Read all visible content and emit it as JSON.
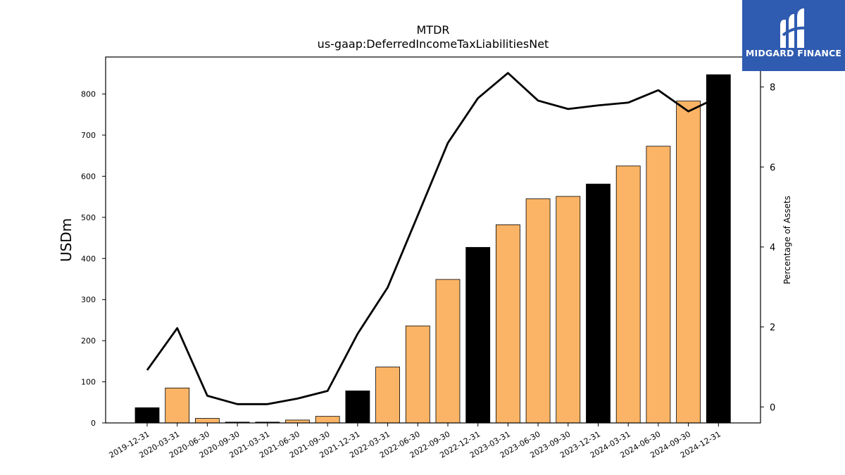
{
  "chart_data": {
    "type": "bar",
    "title": "MTDR",
    "subtitle": "us-gaap:DeferredIncomeTaxLiabilitiesNet",
    "ylabel": "USDm",
    "y2label": "Percentage of Assets",
    "ylim": [
      0,
      890
    ],
    "y2lim": [
      -0.4,
      8.75
    ],
    "yticks": [
      0,
      100,
      200,
      300,
      400,
      500,
      600,
      700,
      800
    ],
    "y2ticks": [
      0,
      2,
      4,
      6,
      8
    ],
    "categories": [
      "2019-12-31",
      "2020-03-31",
      "2020-06-30",
      "2020-09-30",
      "2021-03-31",
      "2021-06-30",
      "2021-09-30",
      "2021-12-31",
      "2022-03-31",
      "2022-06-30",
      "2022-09-30",
      "2022-12-31",
      "2023-03-31",
      "2023-06-30",
      "2023-09-30",
      "2023-12-31",
      "2024-03-31",
      "2024-06-30",
      "2024-09-30",
      "2024-12-31"
    ],
    "series": [
      {
        "kind": "bar",
        "axis": "left",
        "values": [
          37,
          85,
          11,
          2,
          2,
          7,
          16,
          78,
          136,
          236,
          349,
          427,
          482,
          545,
          551,
          581,
          625,
          673,
          783,
          847
        ],
        "colors": [
          "#000000",
          "#fbb465",
          "#fbb465",
          "#000000",
          "#000000",
          "#fbb465",
          "#fbb465",
          "#000000",
          "#fbb465",
          "#fbb465",
          "#fbb465",
          "#000000",
          "#fbb465",
          "#fbb465",
          "#fbb465",
          "#000000",
          "#fbb465",
          "#fbb465",
          "#fbb465",
          "#000000"
        ]
      },
      {
        "kind": "line",
        "axis": "right",
        "color": "#000000",
        "values": [
          0.92,
          1.97,
          0.28,
          0.07,
          0.07,
          0.21,
          0.4,
          1.83,
          2.99,
          4.79,
          6.6,
          7.72,
          8.35,
          7.66,
          7.45,
          7.54,
          7.61,
          7.92,
          7.39,
          7.75
        ]
      }
    ]
  },
  "branding": {
    "logo_text": "MIDGARD FINANCE",
    "logo_color": "#2f5bb0"
  }
}
